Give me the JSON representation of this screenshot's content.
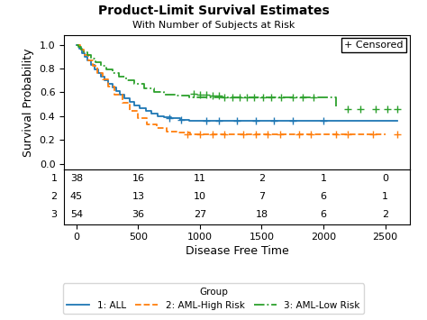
{
  "chart_data": {
    "type": "step",
    "title": "Product-Limit Survival Estimates",
    "subtitle": "With Number of Subjects at Risk",
    "xlabel": "Disease Free Time",
    "ylabel": "Survival Probability",
    "xlim": [
      -100,
      2700
    ],
    "ylim": [
      -0.05,
      1.08
    ],
    "xticks": [
      0,
      500,
      1000,
      1500,
      2000,
      2500
    ],
    "yticks": [
      {
        "value": 0.0,
        "label": "0.0"
      },
      0.2,
      0.4,
      0.6,
      0.8,
      {
        "value": 1.0,
        "label": "1.0"
      }
    ],
    "grid": false,
    "legend": "lower center",
    "legend_title": "Group",
    "annotation": "+ Censored",
    "series": [
      {
        "name": "1: ALL",
        "line_style": "solid",
        "marker": "plus",
        "x": [
          0,
          20,
          45,
          70,
          90,
          120,
          150,
          175,
          200,
          230,
          260,
          290,
          320,
          350,
          390,
          430,
          470,
          510,
          560,
          610,
          660,
          710,
          770,
          840,
          910,
          990,
          1080,
          1170,
          1260,
          1400,
          1550,
          1700,
          1900,
          2100,
          2300,
          2600
        ],
        "values": [
          1.0,
          0.97,
          0.93,
          0.9,
          0.87,
          0.83,
          0.79,
          0.76,
          0.73,
          0.7,
          0.67,
          0.64,
          0.61,
          0.58,
          0.55,
          0.52,
          0.49,
          0.47,
          0.44,
          0.42,
          0.4,
          0.39,
          0.38,
          0.37,
          0.36,
          0.36,
          0.36,
          0.36,
          0.36,
          0.36,
          0.36,
          0.36,
          0.36,
          0.36,
          0.36,
          0.36
        ],
        "censored_x": [
          750,
          850,
          1050,
          1150,
          1300,
          1450,
          1600,
          1750,
          2000
        ],
        "censored_values": [
          0.38,
          0.37,
          0.36,
          0.36,
          0.36,
          0.36,
          0.36,
          0.36,
          0.36
        ]
      },
      {
        "name": "2: AML-High Risk",
        "line_style": "dashed",
        "marker": "plus",
        "x": [
          0,
          30,
          60,
          95,
          130,
          170,
          210,
          260,
          310,
          370,
          430,
          500,
          570,
          650,
          730,
          820,
          920,
          1020,
          1150,
          1300,
          1500,
          1700,
          2000,
          2500
        ],
        "values": [
          1.0,
          0.96,
          0.91,
          0.87,
          0.82,
          0.76,
          0.71,
          0.65,
          0.58,
          0.51,
          0.44,
          0.38,
          0.33,
          0.3,
          0.27,
          0.26,
          0.25,
          0.25,
          0.25,
          0.25,
          0.25,
          0.25,
          0.25,
          0.25
        ],
        "censored_x": [
          900,
          1000,
          1100,
          1200,
          1350,
          1450,
          1550,
          1650,
          1800,
          1900,
          2100,
          2200,
          2400,
          2600
        ],
        "censored_values": [
          0.25,
          0.25,
          0.25,
          0.25,
          0.25,
          0.25,
          0.25,
          0.25,
          0.25,
          0.25,
          0.25,
          0.25,
          0.25,
          0.25
        ]
      },
      {
        "name": "3: AML-Low Risk",
        "line_style": "dashdot",
        "marker": "plus",
        "x": [
          0,
          15,
          35,
          60,
          90,
          120,
          155,
          195,
          240,
          290,
          345,
          405,
          470,
          545,
          625,
          710,
          805,
          910,
          1020,
          1140,
          1280,
          1440,
          1620,
          1900,
          2100
        ],
        "values": [
          1.0,
          0.98,
          0.96,
          0.94,
          0.91,
          0.88,
          0.85,
          0.82,
          0.79,
          0.76,
          0.73,
          0.7,
          0.67,
          0.63,
          0.6,
          0.58,
          0.57,
          0.56,
          0.56,
          0.56,
          0.56,
          0.56,
          0.56,
          0.56,
          0.46
        ],
        "censored_x": [
          950,
          1000,
          1050,
          1100,
          1150,
          1200,
          1260,
          1320,
          1380,
          1440,
          1510,
          1580,
          1660,
          1750,
          1830,
          1920,
          2200,
          2300,
          2420,
          2520,
          2600
        ],
        "censored_values": [
          0.59,
          0.58,
          0.58,
          0.57,
          0.57,
          0.56,
          0.56,
          0.56,
          0.56,
          0.56,
          0.56,
          0.56,
          0.56,
          0.56,
          0.56,
          0.56,
          0.46,
          0.46,
          0.46,
          0.46,
          0.46
        ]
      }
    ],
    "at_risk": {
      "x": [
        0,
        500,
        1000,
        1500,
        2000,
        2500
      ],
      "rows": [
        {
          "label": "1",
          "values": [
            38,
            16,
            11,
            2,
            1,
            0
          ]
        },
        {
          "label": "2",
          "values": [
            45,
            13,
            10,
            7,
            6,
            1
          ]
        },
        {
          "label": "3",
          "values": [
            54,
            36,
            27,
            18,
            6,
            2
          ]
        }
      ]
    }
  }
}
